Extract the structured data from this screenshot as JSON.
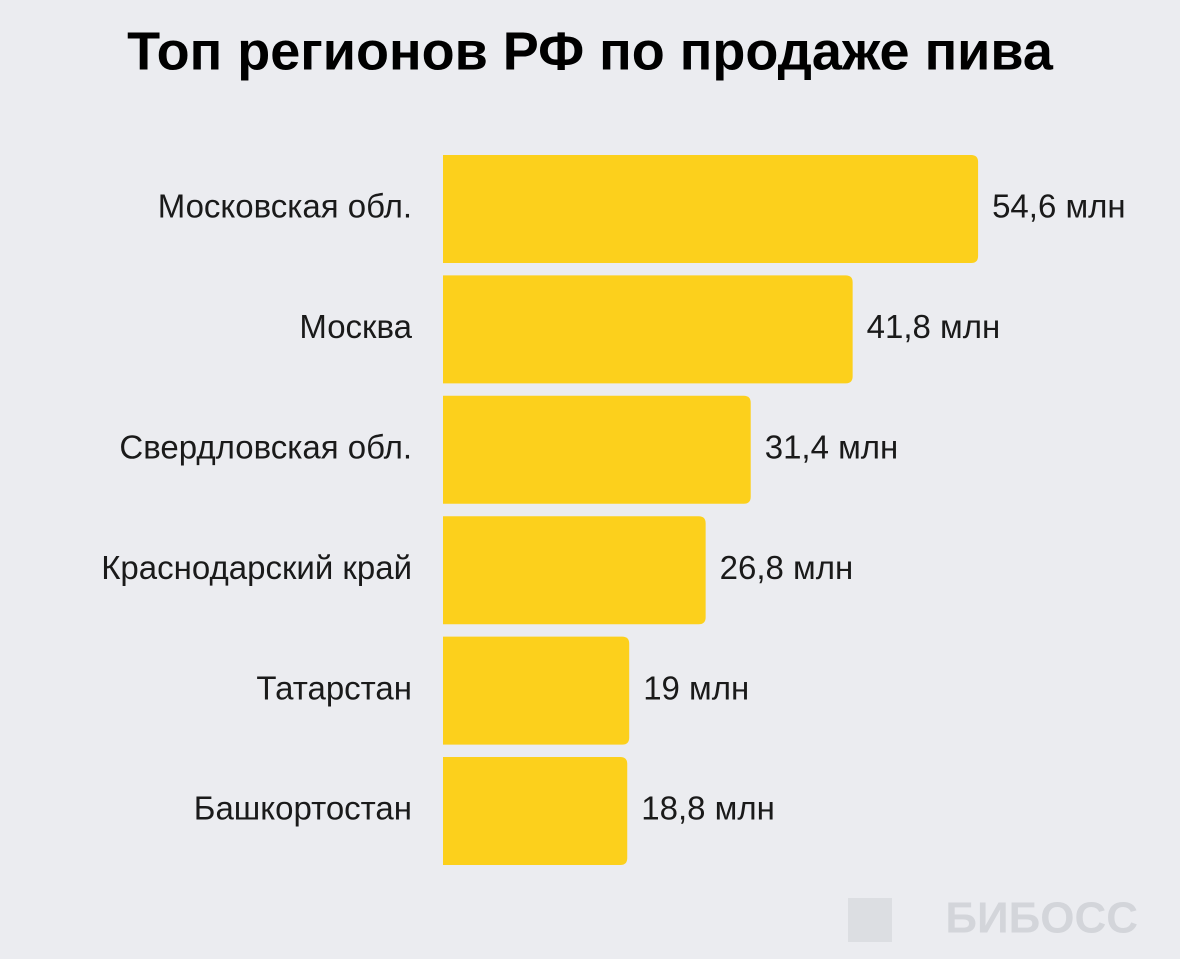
{
  "chart_data": {
    "type": "bar",
    "orientation": "horizontal",
    "title": "Топ регионов РФ по продаже пива",
    "categories": [
      "Московская обл.",
      "Москва",
      "Свердловская обл.",
      "Краснодарский край",
      "Татарстан",
      "Башкортостан"
    ],
    "values": [
      54.6,
      41.8,
      31.4,
      26.8,
      19,
      18.8
    ],
    "value_labels": [
      "54,6 млн",
      "41,8 млн",
      "31,4 млн",
      "26,8 млн",
      "19 млн",
      "18,8 млн"
    ],
    "color": "#fcd01c",
    "watermark": "БИБОСС"
  }
}
